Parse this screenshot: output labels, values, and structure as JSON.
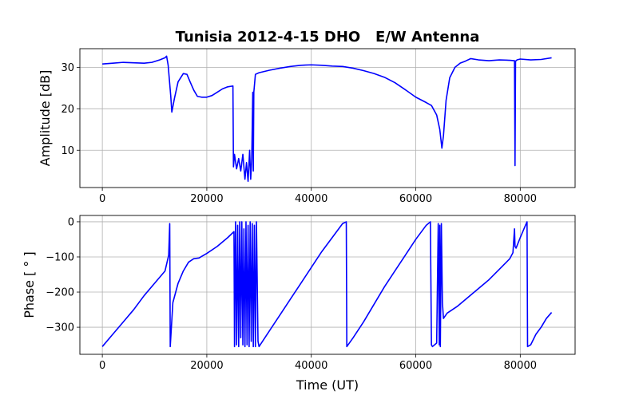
{
  "chart_data": {
    "type": "line",
    "title": "Tunisia 2012-4-15 DHO   E/W Antenna",
    "line_color": "#0000ff",
    "grid": true,
    "panels": [
      {
        "id": "amplitude",
        "ylabel": "Amplitude [dB]",
        "xlabel": "",
        "xlim": [
          -4300,
          90500
        ],
        "ylim": [
          1,
          34.5
        ],
        "xticks": [
          0,
          20000,
          40000,
          60000,
          80000
        ],
        "yticks": [
          10,
          20,
          30
        ],
        "series": [
          {
            "x": [
              0,
              2000,
              4000,
              6000,
              8000,
              9500,
              11000,
              12000,
              12300,
              12600,
              13100,
              13300,
              13800,
              14500,
              15500,
              16200,
              16800,
              17500,
              18200,
              19000,
              20000,
              21000,
              22000,
              23000,
              24000,
              25000,
              25100,
              25300,
              25700,
              26100,
              26500,
              26900,
              27300,
              27600,
              27900,
              28200,
              28400,
              28600,
              28800,
              28900,
              29000,
              29300,
              30000,
              32000,
              34000,
              36000,
              38000,
              40000,
              42000,
              44000,
              46000,
              48000,
              50000,
              52000,
              54000,
              56000,
              58000,
              60000,
              62000,
              63000,
              64000,
              64600,
              65000,
              65300,
              65800,
              66500,
              67500,
              68500,
              69500,
              70500,
              72000,
              74000,
              76000,
              78000,
              78900,
              79000,
              79100,
              79400,
              80000,
              82000,
              84000,
              86000
            ],
            "y": [
              30.8,
              31,
              31.2,
              31.1,
              31,
              31.2,
              31.8,
              32.3,
              32.7,
              30.5,
              23,
              19.2,
              22.5,
              26.5,
              28.5,
              28.3,
              26.5,
              24.5,
              23,
              22.8,
              22.8,
              23.2,
              24,
              24.8,
              25.3,
              25.5,
              6,
              9,
              5.5,
              8,
              5,
              9,
              3,
              7,
              2.5,
              10,
              3,
              8,
              24,
              5,
              24,
              28.3,
              28.7,
              29.3,
              29.8,
              30.2,
              30.5,
              30.6,
              30.5,
              30.3,
              30.2,
              29.8,
              29.2,
              28.5,
              27.6,
              26.3,
              24.6,
              22.8,
              21.5,
              20.8,
              18.5,
              15,
              10.5,
              13.5,
              22,
              27.5,
              30,
              31,
              31.5,
              32.1,
              31.8,
              31.6,
              31.8,
              31.7,
              31.6,
              6.3,
              31.5,
              31.8,
              32,
              31.8,
              31.9,
              32.3
            ]
          }
        ]
      },
      {
        "id": "phase",
        "ylabel": "Phase [ $^\\circ$ ]",
        "ylabel_display": "Phase [ ° ]",
        "xlabel": "Time (UT)",
        "xlim": [
          -4300,
          90500
        ],
        "ylim": [
          -377,
          18
        ],
        "xticks": [
          0,
          20000,
          40000,
          60000,
          80000
        ],
        "yticks": [
          0,
          -100,
          -200,
          -300
        ],
        "series": [
          {
            "x": [
              0,
              2000,
              4000,
              6000,
              8000,
              10000,
              12000,
              12700,
              12900,
              13000,
              13500,
              14500,
              15500,
              16500,
              17500,
              18500,
              20000,
              22000,
              24000,
              25200,
              25300,
              25500,
              25700,
              25900,
              26100,
              26300,
              26500,
              26700,
              26900,
              27100,
              27300,
              27500,
              27700,
              27900,
              28100,
              28300,
              28500,
              28700,
              28900,
              29100,
              29300,
              29500,
              29800,
              30000,
              32000,
              34000,
              36000,
              38000,
              40000,
              42000,
              44000,
              46000,
              46700,
              46800,
              48000,
              50000,
              52000,
              54000,
              56000,
              58000,
              60000,
              62000,
              62800,
              63000,
              63200,
              64000,
              64300,
              64500,
              64600,
              64700,
              64900,
              65100,
              65300,
              66000,
              68000,
              70000,
              72000,
              74000,
              76000,
              78000,
              78600,
              78900,
              79000,
              79200,
              80000,
              81000,
              81300,
              81400,
              82000,
              83000,
              84000,
              85000,
              86000
            ],
            "y": [
              -355,
              -320,
              -285,
              -250,
              -210,
              -175,
              -140,
              -95,
              -5,
              -355,
              -230,
              -175,
              -140,
              -115,
              -105,
              -103,
              -90,
              -70,
              -45,
              -28,
              -355,
              0,
              -350,
              -10,
              -355,
              0,
              -330,
              0,
              -350,
              -20,
              -355,
              0,
              -350,
              -10,
              -355,
              0,
              -340,
              -5,
              -355,
              -10,
              -355,
              0,
              -340,
              -355,
              -310,
              -265,
              -220,
              -175,
              -130,
              -85,
              -45,
              -5,
              0,
              -355,
              -330,
              -285,
              -235,
              -185,
              -140,
              -95,
              -50,
              -10,
              0,
              -350,
              -355,
              -345,
              -5,
              -350,
              -10,
              -355,
              -5,
              -230,
              -275,
              -260,
              -240,
              -215,
              -190,
              -165,
              -135,
              -105,
              -88,
              -20,
              -70,
              -75,
              -45,
              -10,
              0,
              -355,
              -350,
              -320,
              -300,
              -275,
              -258
            ]
          }
        ]
      }
    ]
  }
}
